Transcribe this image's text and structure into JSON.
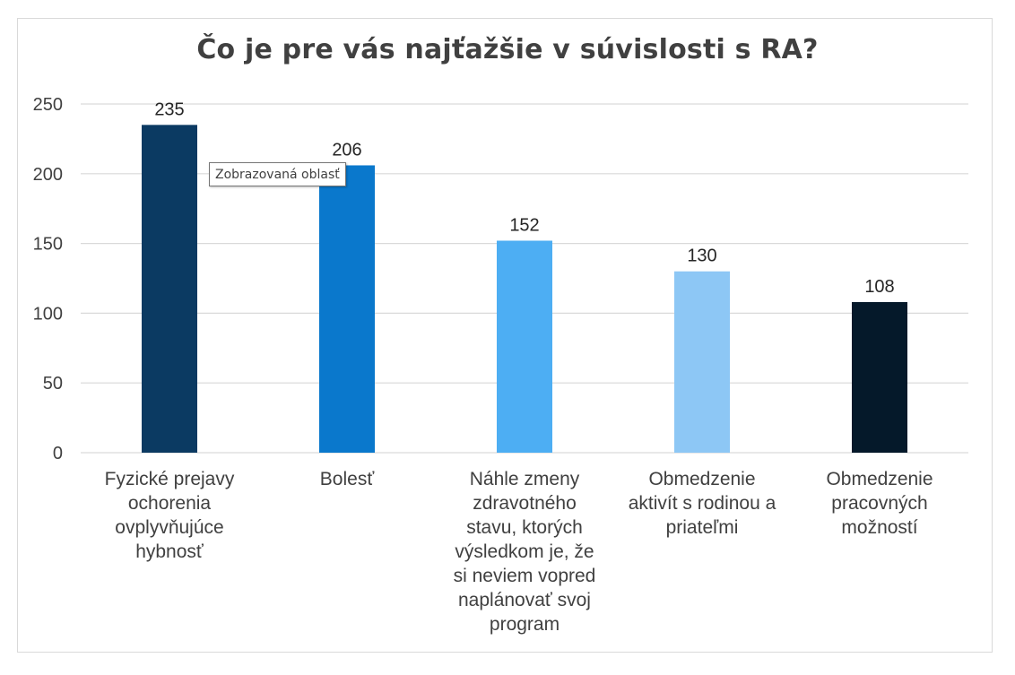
{
  "chart_data": {
    "type": "bar",
    "title": "Čo je pre vás najťažšie v súvislosti s RA?",
    "xlabel": "",
    "ylabel": "",
    "ylim": [
      0,
      250
    ],
    "yticks": [
      0,
      50,
      100,
      150,
      200,
      250
    ],
    "grid": true,
    "legend": "none",
    "categories": [
      [
        "Fyzické prejavy",
        "ochorenia",
        "ovplyvňujúce",
        "hybnosť"
      ],
      [
        "Bolesť"
      ],
      [
        "Náhle zmeny",
        "zdravotného",
        "stavu, ktorých",
        "výsledkom je, že",
        "si neviem vopred",
        "naplánovať svoj",
        "program"
      ],
      [
        "Obmedzenie",
        "aktivít s rodinou a",
        "priateľmi"
      ],
      [
        "Obmedzenie",
        "pracovných",
        "možností"
      ]
    ],
    "values": [
      235,
      206,
      152,
      130,
      108
    ],
    "data_labels": [
      "235",
      "206",
      "152",
      "130",
      "108"
    ],
    "colors": [
      "#0b3a62",
      "#0a78cc",
      "#4daef3",
      "#8dc7f5",
      "#05192a"
    ],
    "gridline_color": "#d9d9d9"
  },
  "tooltip": {
    "text": "Zobrazovaná oblasť"
  }
}
